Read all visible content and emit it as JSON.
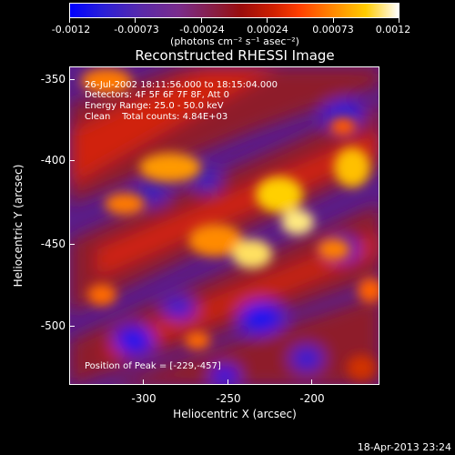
{
  "colorbar": {
    "ticks": [
      "-0.0012",
      "-0.00073",
      "-0.00024",
      "0.00024",
      "0.00073",
      "0.0012"
    ],
    "unit": "(photons cm⁻² s⁻¹ asec⁻²)"
  },
  "title": "Reconstructed RHESSI Image",
  "info": {
    "time_range": "26-Jul-2002 18:11:56.000 to 18:15:04.000",
    "detectors": "Detectors: 4F 5F 6F 7F 8F, Att 0",
    "energy_range": "Energy Range: 25.0 - 50.0 keV",
    "clean_counts": "Clean    Total counts: 4.84E+03",
    "peak": "Position of Peak = [-229,-457]"
  },
  "axes": {
    "x_title": "Heliocentric X (arcsec)",
    "y_title": "Heliocentric Y (arcsec)",
    "x_ticks": [
      "-300",
      "-250",
      "-200"
    ],
    "y_ticks": [
      "-350",
      "-400",
      "-450",
      "-500"
    ]
  },
  "timestamp": "18-Apr-2013 23:24",
  "colors": {
    "background": "#000000",
    "low": "#0000ff",
    "mid": "#5a1d8a",
    "high": "#ffffff"
  }
}
